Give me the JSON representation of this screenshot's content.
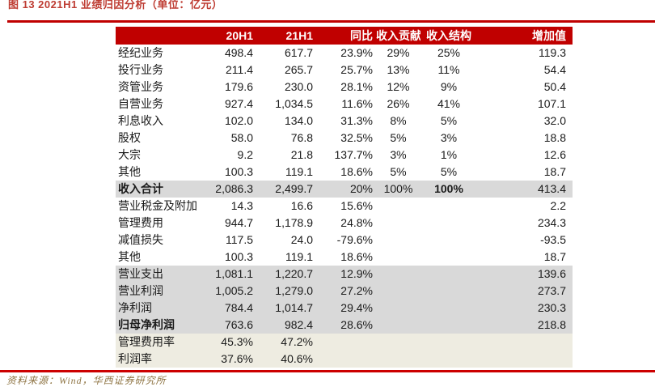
{
  "title": "图 13  2021H1 业绩归因分析（单位：亿元）",
  "source_note": "资料来源：Wind，华西证券研究所",
  "colors": {
    "header_bg": "#c00000",
    "top_line": "#c00000",
    "bottom_line": "#cc0000",
    "row_gray": "#d9d9d9",
    "row_cream": "#eeece1",
    "title_text": "#be3c32",
    "source_text": "#8e7443"
  },
  "table": {
    "columns": [
      "",
      "20H1",
      "21H1",
      "同比",
      "收入贡献",
      "收入结构",
      "增加值"
    ],
    "rows": [
      {
        "label": "经纪业务",
        "values": [
          "498.4",
          "617.7",
          "23.9%",
          "29%",
          "25%",
          "119.3"
        ],
        "style": "white"
      },
      {
        "label": "投行业务",
        "values": [
          "211.4",
          "265.7",
          "25.7%",
          "13%",
          "11%",
          "54.4"
        ],
        "style": "white"
      },
      {
        "label": "资管业务",
        "values": [
          "179.6",
          "230.0",
          "28.1%",
          "12%",
          "9%",
          "50.4"
        ],
        "style": "white"
      },
      {
        "label": "自营业务",
        "values": [
          "927.4",
          "1,034.5",
          "11.6%",
          "26%",
          "41%",
          "107.1"
        ],
        "style": "white"
      },
      {
        "label": "利息收入",
        "values": [
          "102.0",
          "134.0",
          "31.3%",
          "8%",
          "5%",
          "32.0"
        ],
        "style": "white"
      },
      {
        "label": "股权",
        "values": [
          "58.0",
          "76.8",
          "32.5%",
          "5%",
          "3%",
          "18.8"
        ],
        "style": "white"
      },
      {
        "label": "大宗",
        "values": [
          "9.2",
          "21.8",
          "137.7%",
          "3%",
          "1%",
          "12.6"
        ],
        "style": "white"
      },
      {
        "label": "其他",
        "values": [
          "100.3",
          "119.1",
          "18.6%",
          "5%",
          "5%",
          "18.7"
        ],
        "style": "white"
      },
      {
        "label": "收入合计",
        "values": [
          "2,086.3",
          "2,499.7",
          "20%",
          "100%",
          "100%",
          "413.4"
        ],
        "style": "gray",
        "bold_label": true,
        "bold_values": [
          4
        ]
      },
      {
        "label": "营业税金及附加",
        "values": [
          "14.3",
          "16.6",
          "15.6%",
          "",
          "",
          "2.2"
        ],
        "style": "white"
      },
      {
        "label": "管理费用",
        "values": [
          "944.7",
          "1,178.9",
          "24.8%",
          "",
          "",
          "234.3"
        ],
        "style": "white"
      },
      {
        "label": "减值损失",
        "values": [
          "117.5",
          "24.0",
          "-79.6%",
          "",
          "",
          "-93.5"
        ],
        "style": "white"
      },
      {
        "label": "其他",
        "values": [
          "100.3",
          "119.1",
          "18.6%",
          "",
          "",
          "18.7"
        ],
        "style": "white"
      },
      {
        "label": "营业支出",
        "values": [
          "1,081.1",
          "1,220.7",
          "12.9%",
          "",
          "",
          "139.6"
        ],
        "style": "gray"
      },
      {
        "label": "营业利润",
        "values": [
          "1,005.2",
          "1,279.0",
          "27.2%",
          "",
          "",
          "273.7"
        ],
        "style": "gray"
      },
      {
        "label": "净利润",
        "values": [
          "784.4",
          "1,014.7",
          "29.4%",
          "",
          "",
          "230.3"
        ],
        "style": "gray"
      },
      {
        "label": "归母净利润",
        "values": [
          "763.6",
          "982.4",
          "28.6%",
          "",
          "",
          "218.8"
        ],
        "style": "gray",
        "bold_label": true
      },
      {
        "label": "管理费用率",
        "values": [
          "45.3%",
          "47.2%",
          "",
          "",
          "",
          ""
        ],
        "style": "cream"
      },
      {
        "label": "利润率",
        "values": [
          "37.6%",
          "40.6%",
          "",
          "",
          "",
          ""
        ],
        "style": "cream"
      }
    ]
  }
}
